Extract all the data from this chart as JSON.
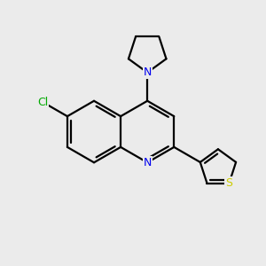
{
  "background_color": "#ebebeb",
  "atom_colors": {
    "C": "#000000",
    "N": "#0000ee",
    "S": "#cccc00",
    "Cl": "#00aa00"
  },
  "bond_color": "#000000",
  "bond_width": 1.6,
  "figsize": [
    3.0,
    3.0
  ],
  "dpi": 100
}
